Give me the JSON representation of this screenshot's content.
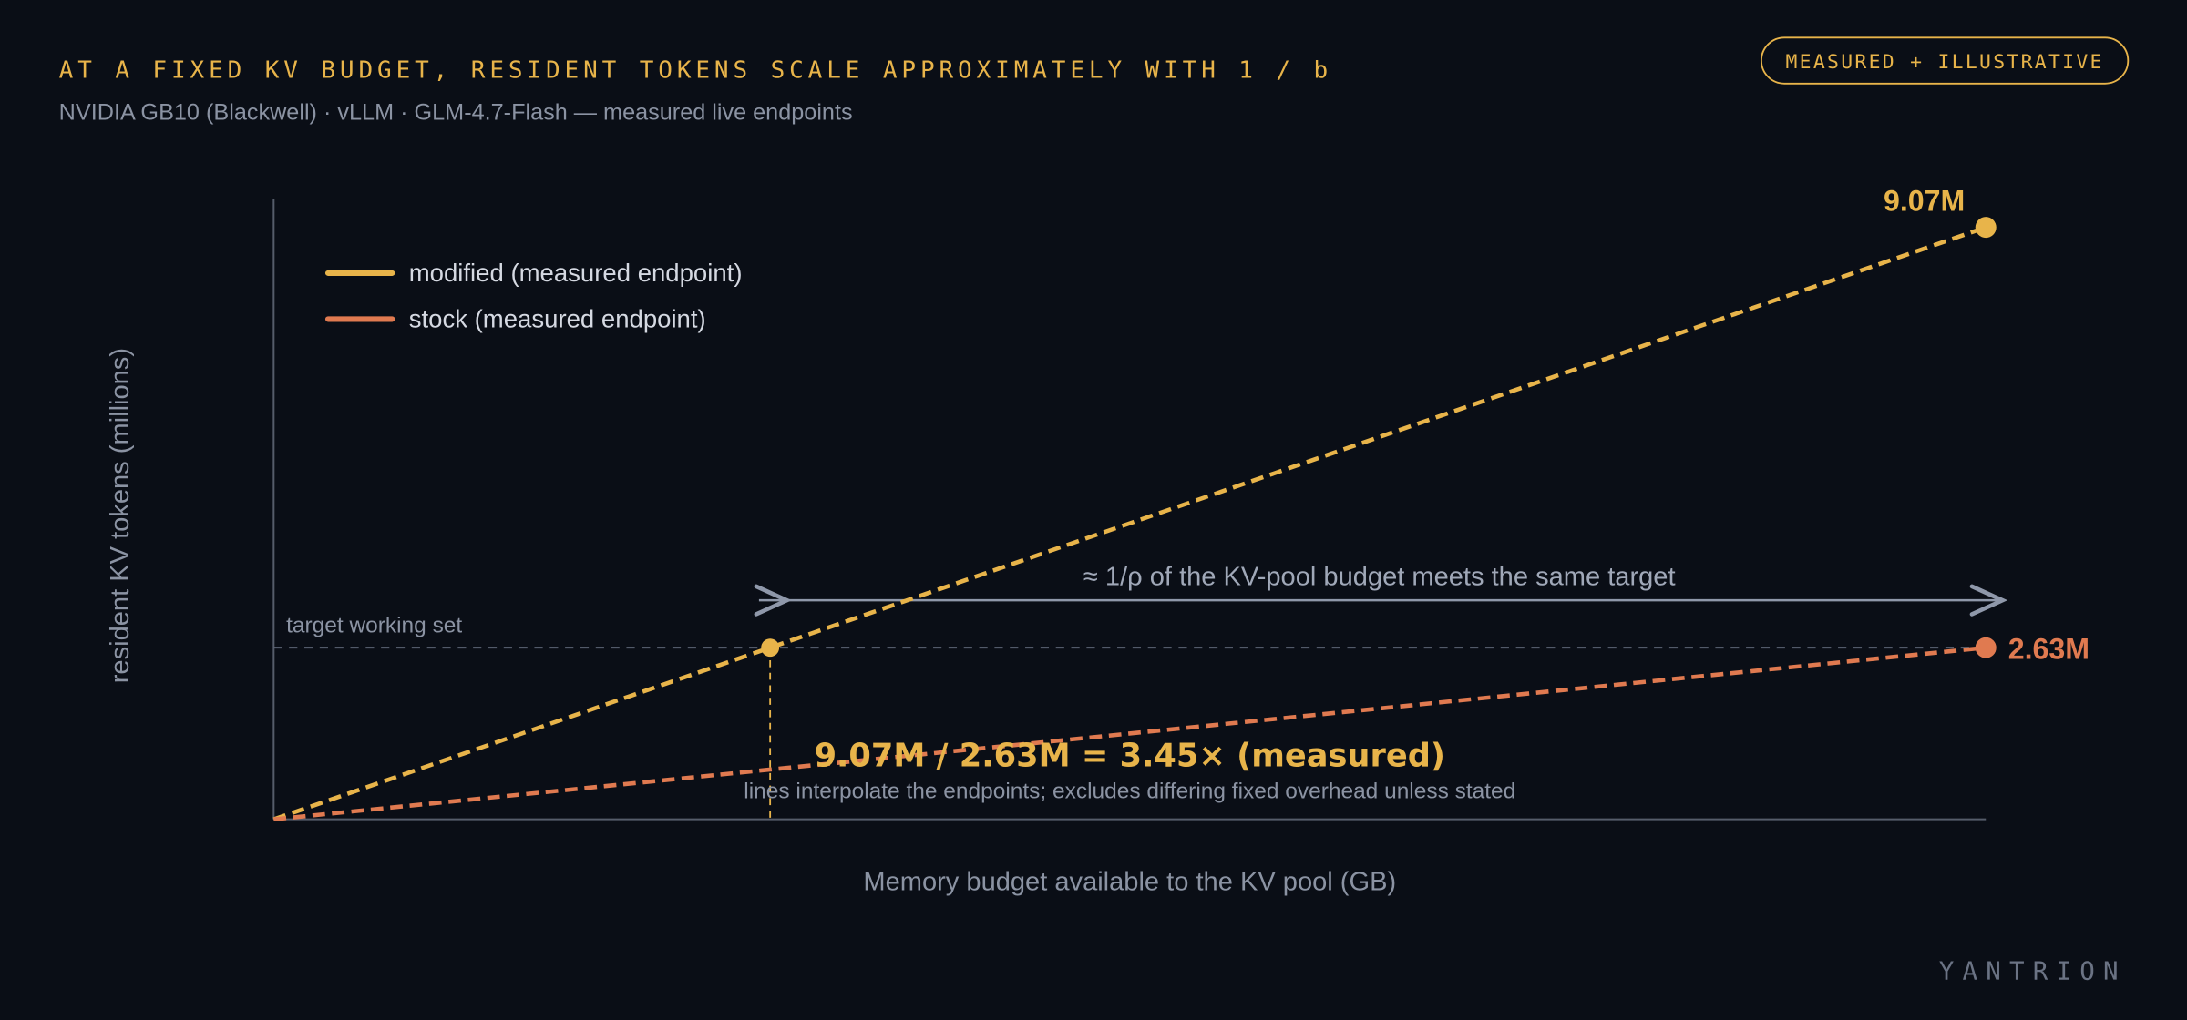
{
  "chart_data": {
    "type": "line",
    "title": "AT A FIXED KV BUDGET, RESIDENT TOKENS SCALE APPROXIMATELY WITH 1 / b",
    "subtitle": "NVIDIA GB10 (Blackwell) · vLLM · GLM-4.7-Flash — measured live endpoints",
    "badge": "MEASURED + ILLUSTRATIVE",
    "brand": "YANTRION",
    "x_label": "Memory budget available to the KV pool (GB)",
    "y_label": "resident KV tokens (millions)",
    "x": [
      0,
      1
    ],
    "xlim": [
      0,
      1
    ],
    "ylim": [
      0,
      9.5
    ],
    "series": [
      {
        "name": "modified (measured endpoint)",
        "color": "#e8b44a",
        "values": [
          0,
          9.07
        ],
        "value_labels": [
          null,
          "9.07M"
        ]
      },
      {
        "name": "stock (measured endpoint)",
        "color": "#e07a50",
        "values": [
          0,
          2.63
        ],
        "value_labels": [
          null,
          "2.63M"
        ]
      }
    ],
    "target": {
      "label": "target working set",
      "value": 2.63
    },
    "arrow_label": "≈ 1/ρ of the KV-pool budget meets the same target",
    "ratio_label": "9.07M / 2.63M = 3.45× (measured)",
    "note": "lines interpolate the endpoints; excludes differing fixed overhead unless stated"
  }
}
